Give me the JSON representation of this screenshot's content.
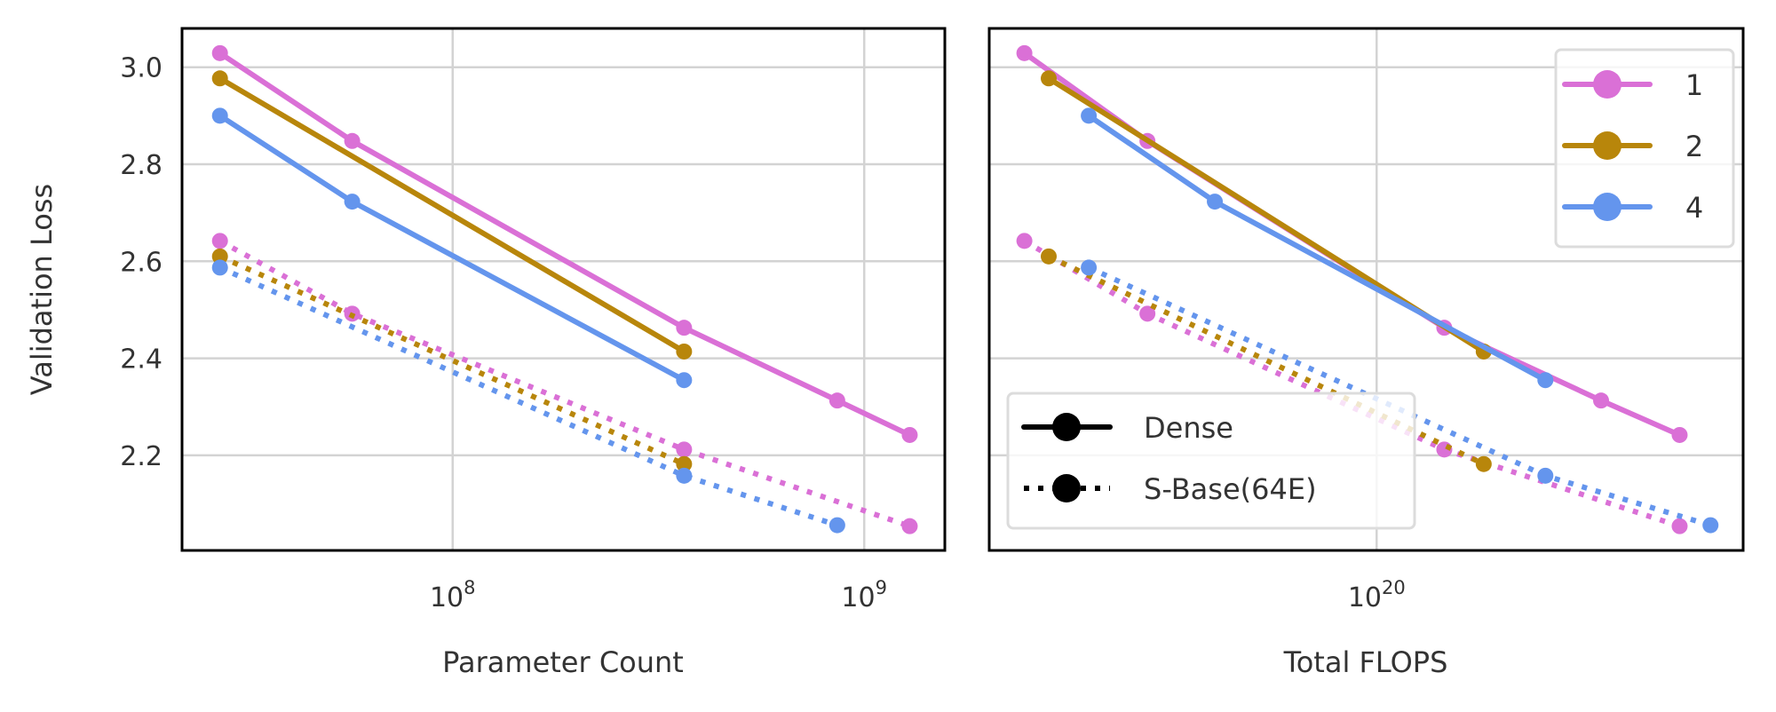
{
  "chart_data": [
    {
      "type": "line",
      "xlabel": "Parameter Count",
      "ylabel": "Validation Loss",
      "xscale": "log",
      "xlim": [
        22000000.0,
        1570000000.0
      ],
      "ylim": [
        2.004,
        3.08
      ],
      "xticks": [
        {
          "value": 100000000.0,
          "base": "10",
          "exp": "8"
        },
        {
          "value": 1000000000.0,
          "base": "10",
          "exp": "9"
        }
      ],
      "yticks": [
        "2.2",
        "2.4",
        "2.6",
        "2.8",
        "3.0"
      ],
      "grid": true,
      "series": [
        {
          "name": "1",
          "style": "Dense",
          "color": "#DA70D6",
          "x": [
            27200000.0,
            57000000.0,
            365000000.0,
            860000000.0,
            1290000000.0
          ],
          "y": [
            3.029,
            2.848,
            2.463,
            2.313,
            2.242
          ]
        },
        {
          "name": "2",
          "style": "Dense",
          "color": "#B8860B",
          "x": [
            27200000.0,
            365000000.0
          ],
          "y": [
            2.977,
            2.414
          ]
        },
        {
          "name": "4",
          "style": "Dense",
          "color": "#6495ED",
          "x": [
            27200000.0,
            57000000.0,
            365000000.0
          ],
          "y": [
            2.9,
            2.723,
            2.355
          ]
        },
        {
          "name": "1",
          "style": "S-Base(64E)",
          "color": "#DA70D6",
          "x": [
            27200000.0,
            57000000.0,
            365000000.0,
            1290000000.0
          ],
          "y": [
            2.642,
            2.492,
            2.212,
            2.054
          ]
        },
        {
          "name": "2",
          "style": "S-Base(64E)",
          "color": "#B8860B",
          "x": [
            27200000.0,
            365000000.0
          ],
          "y": [
            2.61,
            2.182
          ]
        },
        {
          "name": "4",
          "style": "S-Base(64E)",
          "color": "#6495ED",
          "x": [
            27200000.0,
            365000000.0,
            860000000.0
          ],
          "y": [
            2.587,
            2.158,
            2.056
          ]
        }
      ]
    },
    {
      "type": "line",
      "xlabel": "Total FLOPS",
      "ylabel": "",
      "xscale": "log",
      "xlim": [
        9.8e+18,
        9e+20
      ],
      "ylim": [
        2.004,
        3.08
      ],
      "xticks": [
        {
          "value": 1e+20,
          "base": "10",
          "exp": "20"
        }
      ],
      "yticks": [],
      "grid": true,
      "legends": [
        {
          "placement": "top-right",
          "entries": [
            {
              "label": "1",
              "color": "#DA70D6"
            },
            {
              "label": "2",
              "color": "#B8860B"
            },
            {
              "label": "4",
              "color": "#6495ED"
            }
          ]
        },
        {
          "placement": "lower-left",
          "entries": [
            {
              "label": "Dense",
              "linestyle": "solid"
            },
            {
              "label": "S-Base(64E)",
              "linestyle": "dotted"
            }
          ]
        }
      ],
      "series": [
        {
          "name": "1",
          "style": "Dense",
          "color": "#DA70D6",
          "x": [
            1.21e+19,
            2.53e+19,
            1.5e+20,
            3.84e+20,
            6.15e+20
          ],
          "y": [
            3.029,
            2.848,
            2.463,
            2.313,
            2.242
          ]
        },
        {
          "name": "2",
          "style": "Dense",
          "color": "#B8860B",
          "x": [
            1.4e+19,
            1.9e+20
          ],
          "y": [
            2.977,
            2.414
          ]
        },
        {
          "name": "4",
          "style": "Dense",
          "color": "#6495ED",
          "x": [
            1.78e+19,
            3.79e+19,
            2.75e+20
          ],
          "y": [
            2.9,
            2.723,
            2.355
          ]
        },
        {
          "name": "1",
          "style": "S-Base(64E)",
          "color": "#DA70D6",
          "x": [
            1.21e+19,
            2.53e+19,
            1.5e+20,
            6.15e+20
          ],
          "y": [
            2.642,
            2.492,
            2.212,
            2.054
          ]
        },
        {
          "name": "2",
          "style": "S-Base(64E)",
          "color": "#B8860B",
          "x": [
            1.4e+19,
            1.9e+20
          ],
          "y": [
            2.61,
            2.182
          ]
        },
        {
          "name": "4",
          "style": "S-Base(64E)",
          "color": "#6495ED",
          "x": [
            1.78e+19,
            2.75e+20,
            7.4e+20
          ],
          "y": [
            2.587,
            2.158,
            2.056
          ]
        }
      ]
    }
  ]
}
